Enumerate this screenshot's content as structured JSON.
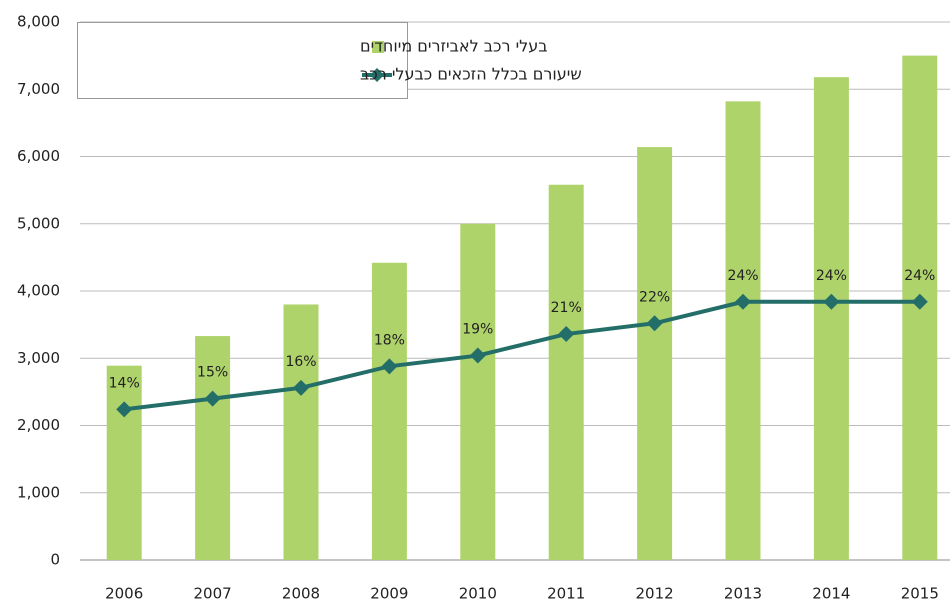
{
  "chart_data": {
    "type": "bar",
    "categories": [
      "2006",
      "2007",
      "2008",
      "2009",
      "2010",
      "2011",
      "2012",
      "2013",
      "2014",
      "2015"
    ],
    "series": [
      {
        "name": "בעלי רכב לאביזרים מיוחדים",
        "type": "bar",
        "color": "#afd36b",
        "values": [
          2890,
          3330,
          3800,
          4420,
          5000,
          5580,
          6140,
          6820,
          7180,
          7500
        ]
      },
      {
        "name": "שיעורם בכלל הזכאים כבעלי רכב",
        "type": "line",
        "axis": "y2",
        "color": "#236e68",
        "values": [
          14,
          15,
          16,
          18,
          19,
          21,
          22,
          24,
          24,
          24
        ],
        "value_labels": [
          "14%",
          "15%",
          "16%",
          "18%",
          "19%",
          "21%",
          "22%",
          "24%",
          "24%",
          "24%"
        ]
      }
    ],
    "ylim": [
      0,
      8000
    ],
    "yticks": [
      0,
      {
        "value": 1000,
        "label": "1,000"
      },
      {
        "value": 2000,
        "label": "2,000"
      },
      {
        "value": 3000,
        "label": "3,000"
      },
      {
        "value": 4000,
        "label": "4,000"
      },
      {
        "value": 5000,
        "label": "5,000"
      },
      {
        "value": 6000,
        "label": "6,000"
      },
      {
        "value": 7000,
        "label": "7,000"
      },
      {
        "value": 8000,
        "label": "8,000"
      }
    ],
    "y2lim": [
      0,
      50
    ],
    "grid": true,
    "legend": "top-left"
  }
}
